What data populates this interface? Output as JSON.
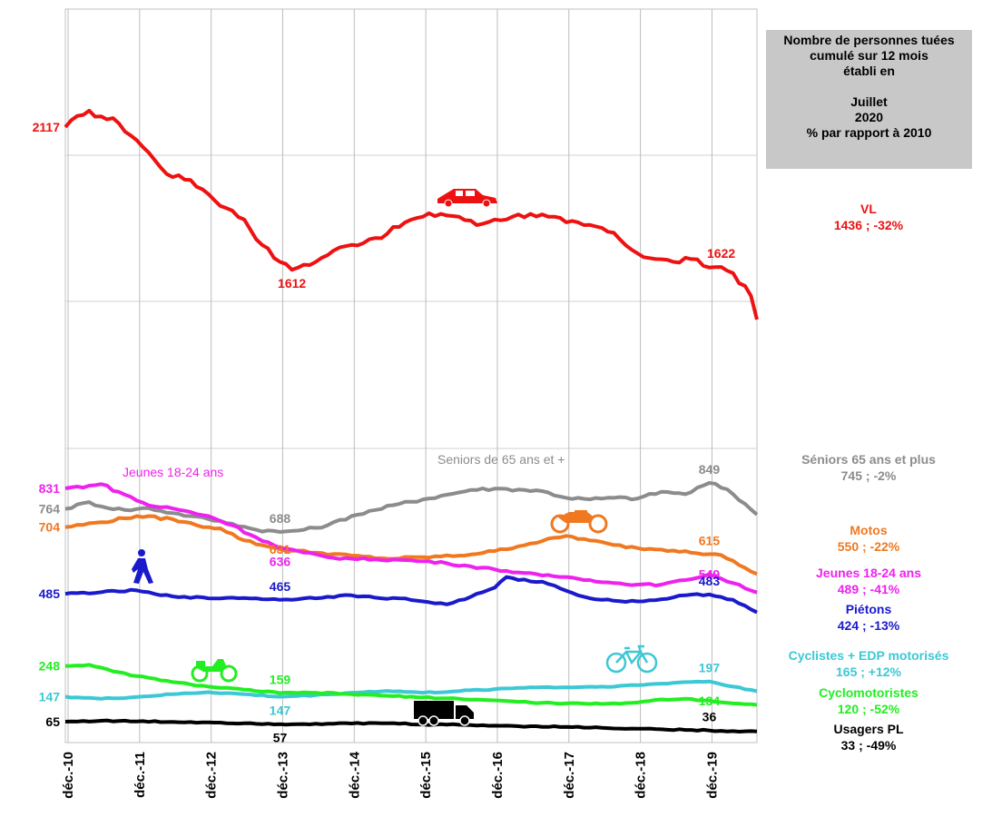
{
  "info_box": {
    "line1": "Nombre de personnes tuées",
    "line2": "cumulé sur 12 mois",
    "line3": "établi en",
    "month": "Juillet",
    "year": "2020",
    "note": "% par rapport à 2010"
  },
  "colors": {
    "vl": "#ee1111",
    "seniors": "#8c8c8c",
    "motos": "#f07820",
    "jeunes": "#ee22ee",
    "pietons": "#1a1acc",
    "cyclistes": "#3cc8d4",
    "cyclomotoristes": "#22ee22",
    "pl": "#000000"
  },
  "chart_data": {
    "type": "line",
    "x_start": "2010-12",
    "x_end": "2020-07",
    "x_tick_labels": [
      "déc.-10",
      "déc.-11",
      "déc.-12",
      "déc.-13",
      "déc.-14",
      "déc.-15",
      "déc.-16",
      "déc.-17",
      "déc.-18",
      "déc.-19"
    ],
    "grid": true,
    "series": [
      {
        "key": "vl",
        "name": "VL",
        "legend_line1": "VL",
        "legend_line2": "1436 ; -32%",
        "keypoints": [
          [
            0,
            2117
          ],
          [
            3,
            2160
          ],
          [
            4,
            2175
          ],
          [
            6,
            2155
          ],
          [
            9,
            2130
          ],
          [
            12,
            2070
          ],
          [
            15,
            2000
          ],
          [
            18,
            1940
          ],
          [
            21,
            1930
          ],
          [
            24,
            1880
          ],
          [
            27,
            1830
          ],
          [
            30,
            1790
          ],
          [
            33,
            1700
          ],
          [
            36,
            1640
          ],
          [
            38,
            1612
          ],
          [
            40,
            1630
          ],
          [
            42,
            1640
          ],
          [
            45,
            1680
          ],
          [
            48,
            1700
          ],
          [
            51,
            1720
          ],
          [
            54,
            1740
          ],
          [
            57,
            1780
          ],
          [
            60,
            1800
          ],
          [
            63,
            1810
          ],
          [
            66,
            1800
          ],
          [
            69,
            1770
          ],
          [
            72,
            1790
          ],
          [
            75,
            1800
          ],
          [
            78,
            1810
          ],
          [
            81,
            1800
          ],
          [
            84,
            1780
          ],
          [
            87,
            1770
          ],
          [
            90,
            1760
          ],
          [
            93,
            1720
          ],
          [
            96,
            1670
          ],
          [
            99,
            1650
          ],
          [
            102,
            1640
          ],
          [
            105,
            1650
          ],
          [
            108,
            1620
          ],
          [
            110,
            1622
          ],
          [
            112,
            1600
          ],
          [
            115,
            1520
          ],
          [
            116,
            1436
          ]
        ],
        "labels": [
          {
            "text": "2117",
            "i": 0,
            "v": 2117,
            "pos": "left"
          },
          {
            "text": "1612",
            "i": 38,
            "v": 1612,
            "pos": "below"
          },
          {
            "text": "1622",
            "i": 110,
            "v": 1622,
            "pos": "above"
          }
        ]
      },
      {
        "key": "seniors",
        "name": "Seniors de 65 ans et +",
        "legend_line1": "Séniors 65 ans et plus",
        "legend_line2": "745 ; -2%",
        "keypoints": [
          [
            0,
            764
          ],
          [
            4,
            786
          ],
          [
            6,
            772
          ],
          [
            10,
            760
          ],
          [
            14,
            766
          ],
          [
            18,
            750
          ],
          [
            21,
            740
          ],
          [
            24,
            730
          ],
          [
            28,
            715
          ],
          [
            32,
            695
          ],
          [
            36,
            688
          ],
          [
            40,
            695
          ],
          [
            44,
            710
          ],
          [
            48,
            740
          ],
          [
            52,
            760
          ],
          [
            56,
            780
          ],
          [
            60,
            795
          ],
          [
            64,
            810
          ],
          [
            68,
            826
          ],
          [
            72,
            830
          ],
          [
            76,
            827
          ],
          [
            80,
            822
          ],
          [
            84,
            800
          ],
          [
            88,
            795
          ],
          [
            92,
            800
          ],
          [
            96,
            798
          ],
          [
            100,
            820
          ],
          [
            104,
            812
          ],
          [
            108,
            849
          ],
          [
            111,
            828
          ],
          [
            114,
            780
          ],
          [
            116,
            745
          ]
        ],
        "labels": [
          {
            "text": "764",
            "i": 0,
            "v": 764,
            "pos": "left"
          },
          {
            "text": "688",
            "i": 36,
            "v": 688,
            "pos": "above"
          },
          {
            "text": "849",
            "i": 108,
            "v": 849,
            "pos": "above"
          }
        ]
      },
      {
        "key": "motos",
        "name": "Motos",
        "legend_line1": "Motos",
        "legend_line2": "550 ; -22%",
        "keypoints": [
          [
            0,
            704
          ],
          [
            6,
            720
          ],
          [
            12,
            740
          ],
          [
            18,
            730
          ],
          [
            22,
            710
          ],
          [
            26,
            700
          ],
          [
            30,
            660
          ],
          [
            34,
            640
          ],
          [
            36,
            631
          ],
          [
            42,
            620
          ],
          [
            48,
            610
          ],
          [
            54,
            600
          ],
          [
            60,
            605
          ],
          [
            66,
            610
          ],
          [
            72,
            625
          ],
          [
            78,
            650
          ],
          [
            84,
            675
          ],
          [
            88,
            660
          ],
          [
            92,
            645
          ],
          [
            96,
            635
          ],
          [
            100,
            630
          ],
          [
            104,
            625
          ],
          [
            108,
            615
          ],
          [
            110,
            612
          ],
          [
            114,
            570
          ],
          [
            116,
            550
          ]
        ],
        "labels": [
          {
            "text": "704",
            "i": 0,
            "v": 704,
            "pos": "left"
          },
          {
            "text": "631",
            "i": 36,
            "v": 631,
            "pos": "center"
          },
          {
            "text": "615",
            "i": 108,
            "v": 615,
            "pos": "above"
          }
        ]
      },
      {
        "key": "jeunes",
        "name": "Jeunes 18-24 ans",
        "legend_line1": "Jeunes 18-24 ans",
        "legend_line2": "489 ; -41%",
        "keypoints": [
          [
            0,
            831
          ],
          [
            4,
            840
          ],
          [
            6,
            845
          ],
          [
            10,
            810
          ],
          [
            14,
            775
          ],
          [
            18,
            765
          ],
          [
            24,
            740
          ],
          [
            28,
            710
          ],
          [
            32,
            670
          ],
          [
            36,
            636
          ],
          [
            40,
            620
          ],
          [
            44,
            605
          ],
          [
            48,
            600
          ],
          [
            52,
            598
          ],
          [
            56,
            596
          ],
          [
            60,
            592
          ],
          [
            64,
            585
          ],
          [
            68,
            575
          ],
          [
            72,
            565
          ],
          [
            76,
            555
          ],
          [
            80,
            545
          ],
          [
            84,
            540
          ],
          [
            88,
            530
          ],
          [
            92,
            520
          ],
          [
            96,
            515
          ],
          [
            100,
            515
          ],
          [
            104,
            530
          ],
          [
            108,
            549
          ],
          [
            112,
            520
          ],
          [
            116,
            489
          ]
        ],
        "labels": [
          {
            "text": "831",
            "i": 0,
            "v": 831,
            "pos": "left"
          },
          {
            "text": "636",
            "i": 36,
            "v": 636,
            "pos": "below"
          },
          {
            "text": "549",
            "i": 108,
            "v": 549,
            "pos": "center"
          }
        ]
      },
      {
        "key": "pietons",
        "name": "Piétons",
        "legend_line1": "Piétons",
        "legend_line2": "424 ; -13%",
        "keypoints": [
          [
            0,
            485
          ],
          [
            6,
            490
          ],
          [
            12,
            496
          ],
          [
            16,
            480
          ],
          [
            20,
            475
          ],
          [
            24,
            470
          ],
          [
            28,
            472
          ],
          [
            32,
            470
          ],
          [
            36,
            465
          ],
          [
            40,
            470
          ],
          [
            44,
            475
          ],
          [
            48,
            480
          ],
          [
            52,
            472
          ],
          [
            56,
            470
          ],
          [
            60,
            460
          ],
          [
            64,
            450
          ],
          [
            68,
            475
          ],
          [
            70,
            490
          ],
          [
            72,
            505
          ],
          [
            74,
            540
          ],
          [
            76,
            530
          ],
          [
            80,
            525
          ],
          [
            84,
            495
          ],
          [
            88,
            470
          ],
          [
            92,
            462
          ],
          [
            96,
            460
          ],
          [
            100,
            467
          ],
          [
            104,
            480
          ],
          [
            108,
            483
          ],
          [
            112,
            465
          ],
          [
            116,
            424
          ]
        ],
        "labels": [
          {
            "text": "485",
            "i": 0,
            "v": 485,
            "pos": "left"
          },
          {
            "text": "465",
            "i": 36,
            "v": 465,
            "pos": "above"
          },
          {
            "text": "483",
            "i": 108,
            "v": 483,
            "pos": "above"
          }
        ]
      },
      {
        "key": "cyclistes",
        "name": "Cyclistes + EDP motorisés",
        "legend_line1": "Cyclistes + EDP motorisés",
        "legend_line2": "165 ; +12%",
        "keypoints": [
          [
            0,
            147
          ],
          [
            6,
            140
          ],
          [
            12,
            146
          ],
          [
            18,
            155
          ],
          [
            24,
            162
          ],
          [
            30,
            155
          ],
          [
            36,
            147
          ],
          [
            42,
            152
          ],
          [
            48,
            160
          ],
          [
            54,
            166
          ],
          [
            60,
            160
          ],
          [
            66,
            165
          ],
          [
            72,
            172
          ],
          [
            78,
            178
          ],
          [
            84,
            178
          ],
          [
            90,
            180
          ],
          [
            96,
            185
          ],
          [
            100,
            190
          ],
          [
            104,
            195
          ],
          [
            108,
            197
          ],
          [
            112,
            180
          ],
          [
            116,
            165
          ]
        ],
        "labels": [
          {
            "text": "147",
            "i": 0,
            "v": 147,
            "pos": "left"
          },
          {
            "text": "147",
            "i": 36,
            "v": 147,
            "pos": "below"
          },
          {
            "text": "197",
            "i": 108,
            "v": 197,
            "pos": "above"
          }
        ]
      },
      {
        "key": "cyclomotoristes",
        "name": "Cyclomotoristes",
        "legend_line1": "Cyclomotoristes",
        "legend_line2": "120 ; -52%",
        "keypoints": [
          [
            0,
            248
          ],
          [
            4,
            252
          ],
          [
            8,
            230
          ],
          [
            12,
            215
          ],
          [
            18,
            195
          ],
          [
            24,
            180
          ],
          [
            30,
            170
          ],
          [
            36,
            159
          ],
          [
            42,
            160
          ],
          [
            48,
            155
          ],
          [
            54,
            150
          ],
          [
            60,
            145
          ],
          [
            66,
            140
          ],
          [
            72,
            135
          ],
          [
            78,
            128
          ],
          [
            84,
            125
          ],
          [
            90,
            123
          ],
          [
            96,
            128
          ],
          [
            100,
            138
          ],
          [
            104,
            140
          ],
          [
            108,
            134
          ],
          [
            112,
            125
          ],
          [
            116,
            120
          ]
        ],
        "labels": [
          {
            "text": "248",
            "i": 0,
            "v": 248,
            "pos": "left"
          },
          {
            "text": "159",
            "i": 36,
            "v": 159,
            "pos": "above"
          },
          {
            "text": "134",
            "i": 108,
            "v": 134,
            "pos": "center"
          }
        ]
      },
      {
        "key": "pl",
        "name": "Usagers PL",
        "legend_line1": "Usagers PL",
        "legend_line2": "33 ; -49%",
        "keypoints": [
          [
            0,
            65
          ],
          [
            6,
            68
          ],
          [
            12,
            66
          ],
          [
            18,
            64
          ],
          [
            24,
            63
          ],
          [
            30,
            60
          ],
          [
            36,
            57
          ],
          [
            42,
            58
          ],
          [
            48,
            59
          ],
          [
            54,
            60
          ],
          [
            60,
            56
          ],
          [
            66,
            55
          ],
          [
            72,
            52
          ],
          [
            78,
            50
          ],
          [
            84,
            48
          ],
          [
            90,
            45
          ],
          [
            96,
            42
          ],
          [
            100,
            40
          ],
          [
            104,
            38
          ],
          [
            108,
            36
          ],
          [
            112,
            34
          ],
          [
            116,
            33
          ]
        ],
        "labels": [
          {
            "text": "65",
            "i": 0,
            "v": 65,
            "pos": "left"
          },
          {
            "text": "57",
            "i": 36,
            "v": 57,
            "pos": "below"
          },
          {
            "text": "36",
            "i": 108,
            "v": 36,
            "pos": "above"
          }
        ]
      }
    ]
  }
}
